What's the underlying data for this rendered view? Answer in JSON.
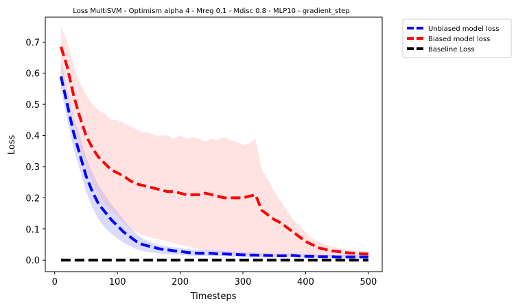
{
  "chart_data": {
    "type": "line",
    "title": "Loss MultiSVM - Optimism alpha 4 - Mreg 0.1 - Mdisc 0.8 - MLP10 - gradient_step",
    "xlabel": "Timesteps",
    "ylabel": "Loss",
    "xlim": [
      -15,
      522
    ],
    "ylim": [
      -0.037,
      0.78
    ],
    "xticks": [
      0,
      100,
      200,
      300,
      400,
      500
    ],
    "yticks": [
      0.0,
      0.1,
      0.2,
      0.3,
      0.4,
      0.5,
      0.6,
      0.7
    ],
    "xtick_labels": [
      "0",
      "100",
      "200",
      "300",
      "400",
      "500"
    ],
    "ytick_labels": [
      "0.0",
      "0.1",
      "0.2",
      "0.3",
      "0.4",
      "0.5",
      "0.6",
      "0.7"
    ],
    "grid": false,
    "legend_position": "outside-top-right",
    "x": [
      10,
      20,
      30,
      40,
      50,
      60,
      70,
      80,
      90,
      100,
      110,
      120,
      130,
      140,
      150,
      160,
      170,
      180,
      190,
      200,
      210,
      220,
      230,
      240,
      250,
      260,
      270,
      280,
      290,
      300,
      310,
      320,
      330,
      340,
      350,
      360,
      370,
      380,
      390,
      400,
      410,
      420,
      430,
      440,
      450,
      460,
      470,
      480,
      490,
      500
    ],
    "series": [
      {
        "name": "Unbiased model loss",
        "color": "#0000ff",
        "band_color": "#0000ff",
        "values": [
          0.59,
          0.5,
          0.41,
          0.34,
          0.27,
          0.22,
          0.18,
          0.155,
          0.13,
          0.11,
          0.09,
          0.075,
          0.06,
          0.05,
          0.045,
          0.04,
          0.035,
          0.033,
          0.03,
          0.028,
          0.025,
          0.023,
          0.022,
          0.022,
          0.022,
          0.02,
          0.02,
          0.019,
          0.018,
          0.017,
          0.016,
          0.016,
          0.015,
          0.015,
          0.014,
          0.014,
          0.014,
          0.015,
          0.013,
          0.012,
          0.012,
          0.011,
          0.011,
          0.011,
          0.01,
          0.01,
          0.01,
          0.01,
          0.01,
          0.01
        ],
        "lower": [
          0.55,
          0.45,
          0.36,
          0.29,
          0.22,
          0.17,
          0.13,
          0.105,
          0.085,
          0.07,
          0.055,
          0.045,
          0.035,
          0.03,
          0.026,
          0.023,
          0.02,
          0.019,
          0.018,
          0.017,
          0.015,
          0.014,
          0.014,
          0.014,
          0.014,
          0.013,
          0.013,
          0.012,
          0.012,
          0.011,
          0.011,
          0.011,
          0.01,
          0.01,
          0.01,
          0.01,
          0.01,
          0.01,
          0.009,
          0.009,
          0.009,
          0.008,
          0.008,
          0.008,
          0.008,
          0.008,
          0.008,
          0.008,
          0.008,
          0.008
        ],
        "upper": [
          0.64,
          0.55,
          0.46,
          0.4,
          0.33,
          0.28,
          0.24,
          0.21,
          0.18,
          0.155,
          0.13,
          0.105,
          0.085,
          0.07,
          0.06,
          0.052,
          0.047,
          0.044,
          0.041,
          0.039,
          0.036,
          0.034,
          0.033,
          0.032,
          0.031,
          0.03,
          0.029,
          0.028,
          0.027,
          0.026,
          0.025,
          0.024,
          0.023,
          0.022,
          0.021,
          0.021,
          0.021,
          0.022,
          0.02,
          0.019,
          0.018,
          0.018,
          0.017,
          0.017,
          0.016,
          0.016,
          0.016,
          0.016,
          0.016,
          0.016
        ]
      },
      {
        "name": "Biased model loss",
        "color": "#ff0000",
        "band_color": "#ff9999",
        "values": [
          0.685,
          0.62,
          0.53,
          0.46,
          0.4,
          0.36,
          0.33,
          0.31,
          0.29,
          0.28,
          0.27,
          0.255,
          0.245,
          0.24,
          0.235,
          0.23,
          0.225,
          0.22,
          0.22,
          0.215,
          0.21,
          0.21,
          0.21,
          0.215,
          0.21,
          0.205,
          0.2,
          0.2,
          0.2,
          0.2,
          0.205,
          0.21,
          0.16,
          0.145,
          0.13,
          0.12,
          0.105,
          0.09,
          0.075,
          0.06,
          0.05,
          0.04,
          0.035,
          0.03,
          0.028,
          0.025,
          0.023,
          0.022,
          0.02,
          0.02
        ],
        "lower": [
          0.62,
          0.55,
          0.45,
          0.37,
          0.3,
          0.25,
          0.21,
          0.18,
          0.16,
          0.14,
          0.12,
          0.1,
          0.09,
          0.08,
          0.075,
          0.07,
          0.065,
          0.06,
          0.055,
          0.05,
          0.045,
          0.04,
          0.035,
          0.03,
          0.03,
          0.025,
          0.02,
          0.02,
          0.018,
          0.016,
          0.015,
          0.015,
          0.012,
          0.012,
          0.012,
          0.011,
          0.011,
          0.011,
          0.011,
          0.01,
          0.01,
          0.01,
          0.01,
          0.01,
          0.01,
          0.01,
          0.01,
          0.01,
          0.01,
          0.01
        ],
        "upper": [
          0.75,
          0.7,
          0.63,
          0.57,
          0.53,
          0.5,
          0.48,
          0.47,
          0.45,
          0.45,
          0.44,
          0.43,
          0.42,
          0.41,
          0.41,
          0.4,
          0.4,
          0.4,
          0.39,
          0.4,
          0.39,
          0.395,
          0.39,
          0.38,
          0.39,
          0.385,
          0.395,
          0.385,
          0.38,
          0.37,
          0.375,
          0.39,
          0.29,
          0.26,
          0.22,
          0.19,
          0.16,
          0.13,
          0.11,
          0.09,
          0.07,
          0.06,
          0.05,
          0.045,
          0.04,
          0.035,
          0.033,
          0.03,
          0.03,
          0.028
        ]
      },
      {
        "name": "Baseline Loss",
        "color": "#000000",
        "values": [
          0,
          0,
          0,
          0,
          0,
          0,
          0,
          0,
          0,
          0,
          0,
          0,
          0,
          0,
          0,
          0,
          0,
          0,
          0,
          0,
          0,
          0,
          0,
          0,
          0,
          0,
          0,
          0,
          0,
          0,
          0,
          0,
          0,
          0,
          0,
          0,
          0,
          0,
          0,
          0,
          0,
          0,
          0,
          0,
          0,
          0,
          0,
          0,
          0,
          0
        ]
      }
    ]
  }
}
